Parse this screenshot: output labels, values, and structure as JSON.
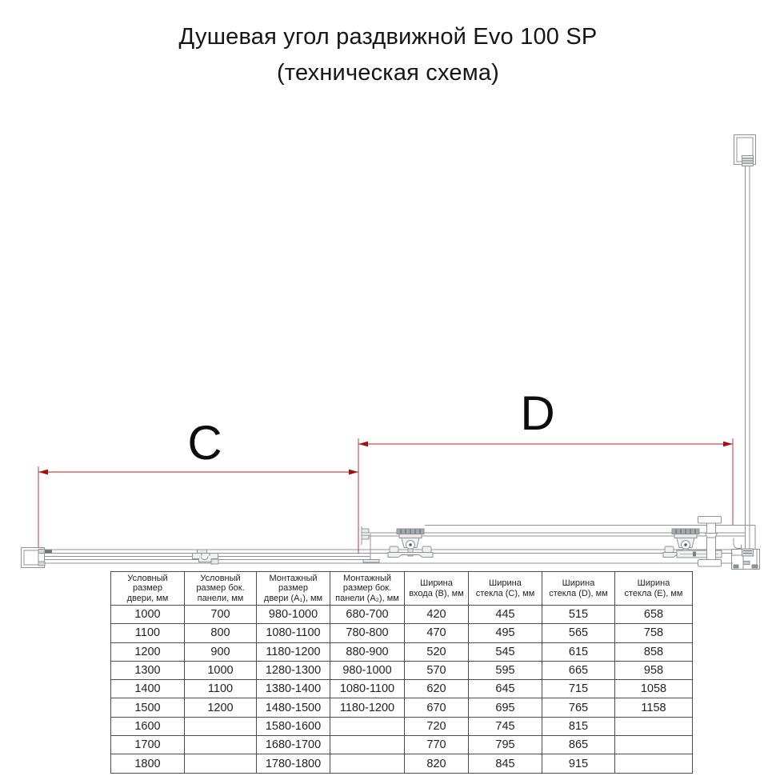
{
  "title": {
    "line1": "Душевая угол раздвижной Evo 100 SP",
    "line2": "(техническая схема)"
  },
  "diagram": {
    "dim_c_label": "C",
    "dim_d_label": "D",
    "dimension_color": "#c41d1d",
    "outline_color": "#8f9397"
  },
  "table": {
    "headers": [
      [
        "Условный",
        "размер",
        "двери, мм"
      ],
      [
        "Условный",
        "размер бок.",
        "панели, мм"
      ],
      [
        "Монтажный",
        "размер",
        "двери (A₁), мм"
      ],
      [
        "Монтажный",
        "размер бок.",
        "панели (A₂), мм"
      ],
      [
        "Ширина",
        "входа (B), мм"
      ],
      [
        "Ширина",
        "стекла (C), мм"
      ],
      [
        "Ширина",
        "стекла (D), мм"
      ],
      [
        "Ширина",
        "стекла (E), мм"
      ]
    ],
    "rows": [
      [
        "1000",
        "700",
        "980-1000",
        "680-700",
        "420",
        "445",
        "515",
        "658"
      ],
      [
        "1100",
        "800",
        "1080-1100",
        "780-800",
        "470",
        "495",
        "565",
        "758"
      ],
      [
        "1200",
        "900",
        "1180-1200",
        "880-900",
        "520",
        "545",
        "615",
        "858"
      ],
      [
        "1300",
        "1000",
        "1280-1300",
        "980-1000",
        "570",
        "595",
        "665",
        "958"
      ],
      [
        "1400",
        "1100",
        "1380-1400",
        "1080-1100",
        "620",
        "645",
        "715",
        "1058"
      ],
      [
        "1500",
        "1200",
        "1480-1500",
        "1180-1200",
        "670",
        "695",
        "765",
        "1158"
      ],
      [
        "1600",
        "",
        "1580-1600",
        "",
        "720",
        "745",
        "815",
        ""
      ],
      [
        "1700",
        "",
        "1680-1700",
        "",
        "770",
        "795",
        "865",
        ""
      ],
      [
        "1800",
        "",
        "1780-1800",
        "",
        "820",
        "845",
        "915",
        ""
      ]
    ]
  }
}
